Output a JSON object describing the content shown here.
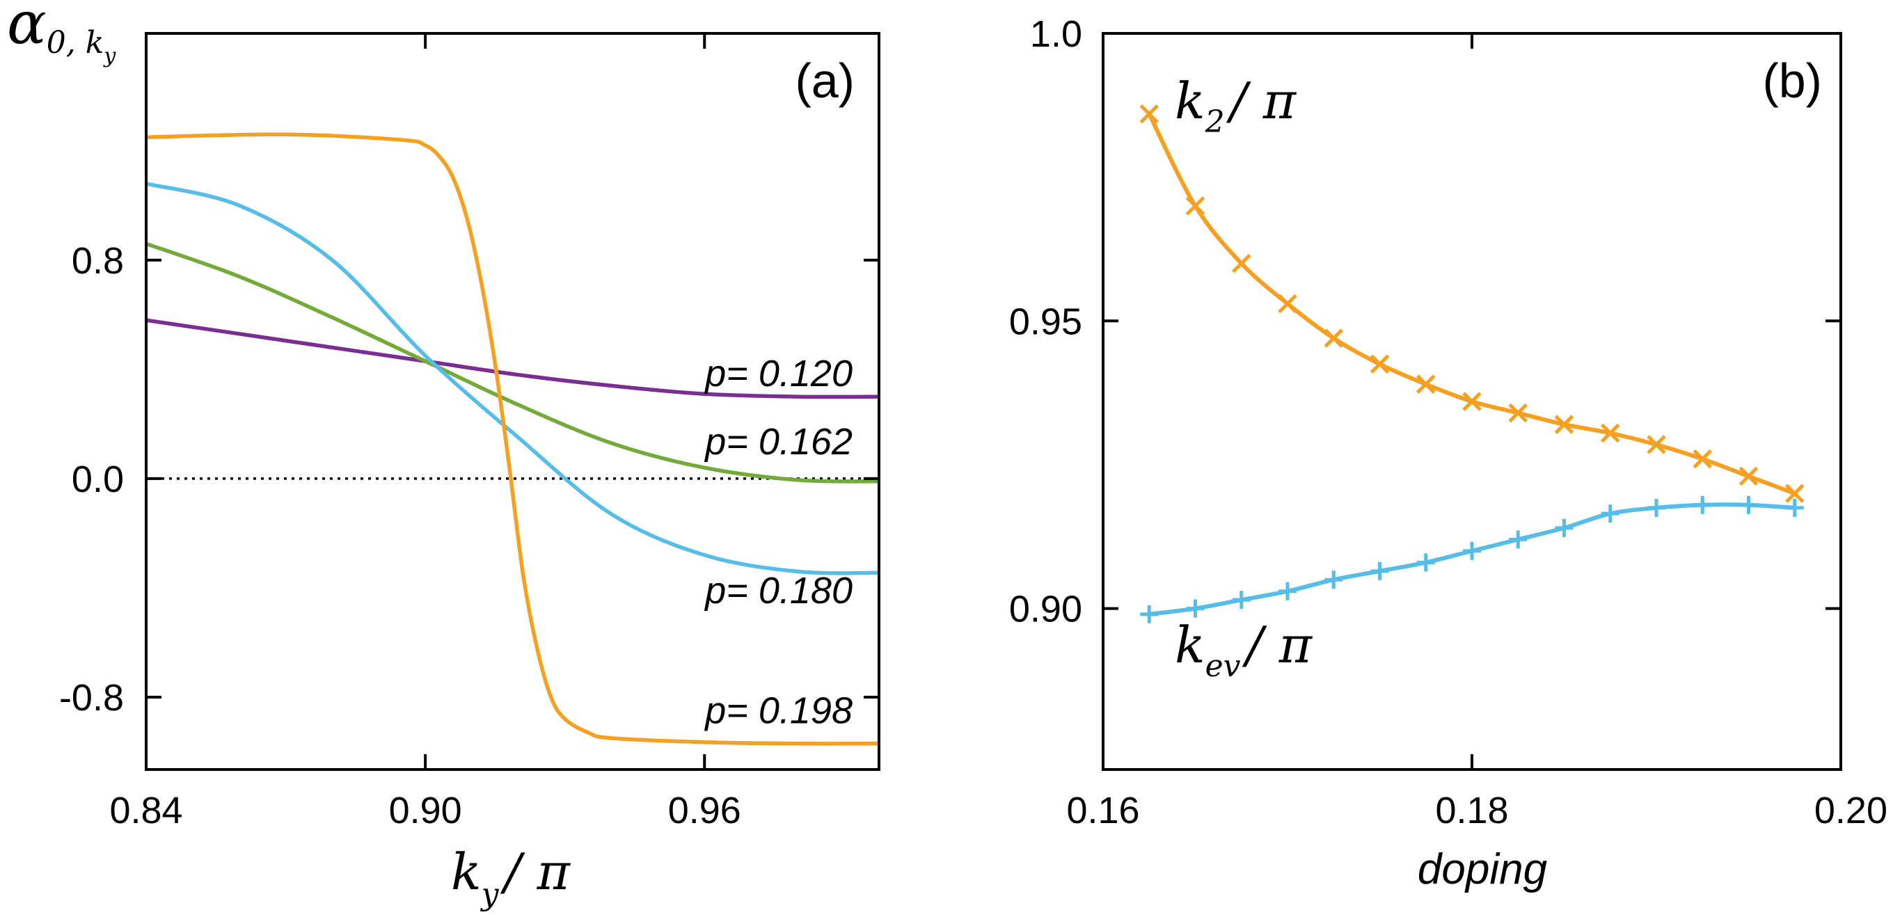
{
  "colors": {
    "orange": "#f5a020",
    "blue": "#55bde8",
    "green": "#74aa3a",
    "purple": "#7a2e92",
    "axis": "#000000"
  },
  "chart_data": [
    {
      "panel_label": "(a)",
      "type": "line",
      "ylabel": {
        "symbol": "α",
        "sub": "0, k",
        "subsub": "y"
      },
      "xlabel": {
        "k": "k",
        "sub": "y",
        "rest": "/ π"
      },
      "xlim": [
        0.84,
        0.9975
      ],
      "ylim": [
        -1.065,
        1.63
      ],
      "x_ticks": [
        0.84,
        0.9,
        0.96
      ],
      "x_tick_labels": [
        "0.84",
        "0.90",
        "0.96"
      ],
      "y_ticks": [
        0.8,
        0.0,
        -0.8
      ],
      "y_tick_labels": [
        "0.8",
        "0.0",
        "-0.8"
      ],
      "zero_line": true,
      "series": [
        {
          "name": "p= 0.120",
          "color": "purple",
          "x": [
            0.84,
            0.86,
            0.88,
            0.9,
            0.92,
            0.94,
            0.96,
            0.98,
            0.9975
          ],
          "y": [
            0.58,
            0.53,
            0.48,
            0.43,
            0.38,
            0.34,
            0.31,
            0.3,
            0.3
          ]
        },
        {
          "name": "p= 0.162",
          "color": "green",
          "x": [
            0.84,
            0.86,
            0.88,
            0.9,
            0.92,
            0.94,
            0.96,
            0.98,
            0.9975
          ],
          "y": [
            0.86,
            0.74,
            0.59,
            0.43,
            0.27,
            0.13,
            0.04,
            -0.005,
            -0.01
          ]
        },
        {
          "name": "p= 0.180",
          "color": "blue",
          "x": [
            0.84,
            0.86,
            0.88,
            0.9,
            0.92,
            0.94,
            0.96,
            0.98,
            0.9975
          ],
          "y": [
            1.08,
            1.0,
            0.8,
            0.45,
            0.15,
            -0.13,
            -0.28,
            -0.34,
            -0.345
          ]
        },
        {
          "name": "p= 0.198",
          "color": "orange",
          "x": [
            0.84,
            0.87,
            0.895,
            0.9,
            0.903,
            0.906,
            0.909,
            0.912,
            0.915,
            0.918,
            0.921,
            0.924,
            0.927,
            0.93,
            0.935,
            0.94,
            0.96,
            0.98,
            0.9975
          ],
          "y": [
            1.25,
            1.26,
            1.24,
            1.22,
            1.18,
            1.1,
            0.95,
            0.72,
            0.42,
            0.05,
            -0.35,
            -0.62,
            -0.8,
            -0.88,
            -0.93,
            -0.95,
            -0.965,
            -0.97,
            -0.97
          ]
        }
      ]
    },
    {
      "panel_label": "(b)",
      "type": "line",
      "xlabel": "doping",
      "xlim": [
        0.16,
        0.2
      ],
      "ylim": [
        0.872,
        1.0
      ],
      "x_ticks": [
        0.16,
        0.18,
        0.2
      ],
      "x_tick_labels": [
        "0.16",
        "0.18",
        "0.20"
      ],
      "y_ticks": [
        1.0,
        0.95,
        0.9
      ],
      "y_tick_labels": [
        "1.0",
        "0.95",
        "0.90"
      ],
      "series": [
        {
          "name": "k2/π",
          "label_main": "k",
          "label_sub": "2",
          "label_rest": "/ π",
          "color": "orange",
          "marker": "x",
          "x": [
            0.1625,
            0.165,
            0.1675,
            0.17,
            0.1725,
            0.175,
            0.1775,
            0.18,
            0.1825,
            0.185,
            0.1875,
            0.19,
            0.1925,
            0.195,
            0.1975
          ],
          "y": [
            0.986,
            0.97,
            0.96,
            0.953,
            0.947,
            0.9425,
            0.939,
            0.936,
            0.934,
            0.932,
            0.9305,
            0.9285,
            0.926,
            0.923,
            0.92
          ]
        },
        {
          "name": "kev/π",
          "label_main": "k",
          "label_sub": "ev",
          "label_rest": "/ π",
          "color": "blue",
          "marker": "+",
          "x": [
            0.1625,
            0.165,
            0.1675,
            0.17,
            0.1725,
            0.175,
            0.1775,
            0.18,
            0.1825,
            0.185,
            0.1875,
            0.19,
            0.1925,
            0.195,
            0.1975
          ],
          "y": [
            0.899,
            0.9,
            0.9015,
            0.903,
            0.905,
            0.9065,
            0.908,
            0.91,
            0.912,
            0.914,
            0.9165,
            0.9175,
            0.918,
            0.918,
            0.9175
          ]
        }
      ]
    }
  ]
}
